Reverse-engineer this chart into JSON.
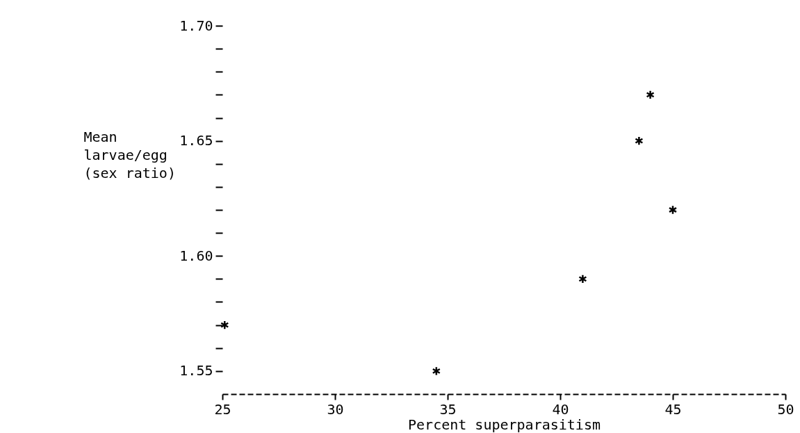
{
  "chart_data": {
    "type": "scatter",
    "xlabel": "Percent superparasitism",
    "ylabel": "Mean larvae/egg (sex ratio)",
    "x": [
      25.1,
      34.5,
      41.0,
      43.5,
      44.0,
      45.0
    ],
    "series": [
      {
        "color": "#000000",
        "values": [
          1.57,
          1.55,
          1.59,
          1.65,
          1.67,
          1.62
        ]
      }
    ],
    "xlim": [
      25,
      50
    ],
    "xticks": [
      25,
      30,
      35,
      40,
      45,
      50
    ],
    "ylim": [
      1.54,
      1.7
    ],
    "yticks": [
      1.55,
      {
        "value": 1.56,
        "label": null
      },
      {
        "value": 1.57,
        "label": null
      },
      {
        "value": 1.58,
        "label": null
      },
      {
        "value": 1.59,
        "label": null
      },
      {
        "value": 1.6,
        "label": "1.60"
      },
      {
        "value": 1.61,
        "label": null
      },
      {
        "value": 1.62,
        "label": null
      },
      {
        "value": 1.63,
        "label": null
      },
      {
        "value": 1.64,
        "label": null
      },
      1.65,
      {
        "value": 1.66,
        "label": null
      },
      {
        "value": 1.67,
        "label": null
      },
      {
        "value": 1.68,
        "label": null
      },
      {
        "value": 1.69,
        "label": null
      },
      {
        "value": 1.7,
        "label": "1.70"
      }
    ],
    "marker": "cross",
    "grid": false
  }
}
